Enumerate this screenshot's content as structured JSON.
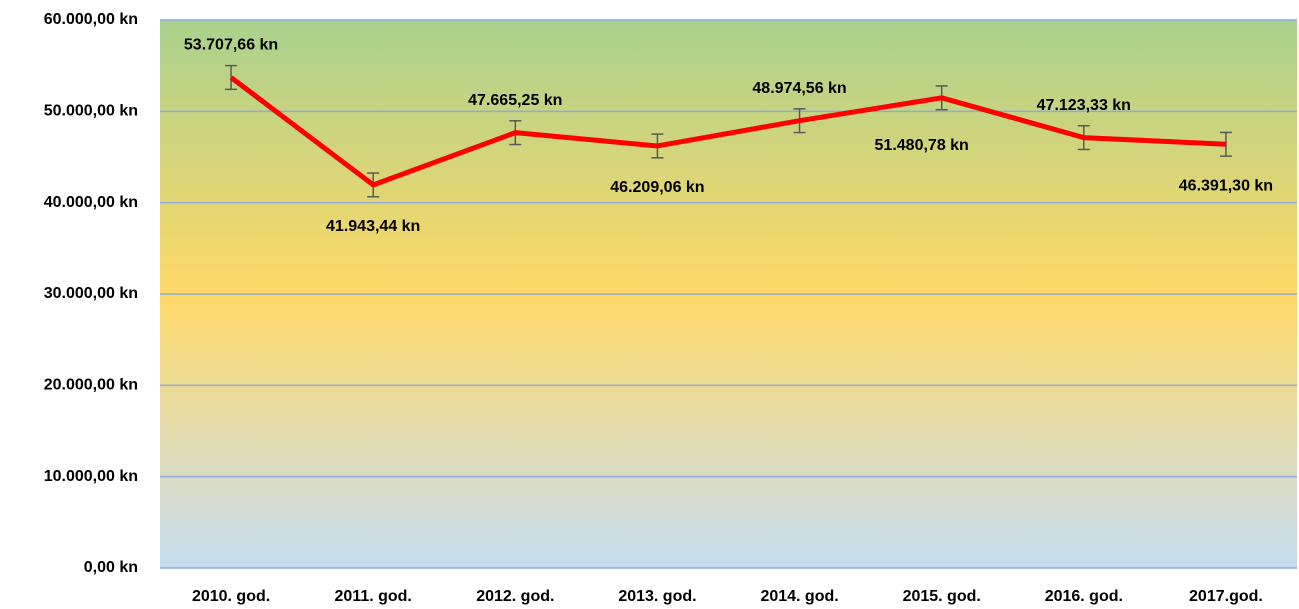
{
  "chart_data": {
    "type": "line",
    "categories": [
      "2010. god.",
      "2011. god.",
      "2012. god.",
      "2013. god.",
      "2014. god.",
      "2015. god.",
      "2016. god.",
      "2017.god."
    ],
    "series": [
      {
        "color": "#ff0000",
        "values": [
          53707.66,
          41943.44,
          47665.25,
          46209.06,
          48974.56,
          51480.78,
          47123.33,
          46391.3
        ],
        "value_labels": [
          "53.707,66 kn",
          "41.943,44 kn",
          "47.665,25 kn",
          "46.209,06 kn",
          "48.974,56 kn",
          "51.480,78 kn",
          "47.123,33 kn",
          "46.391,30 kn"
        ],
        "errors": [
          1300,
          1300,
          1300,
          1300,
          1300,
          1300,
          1300,
          1300
        ]
      }
    ],
    "ylim": [
      0,
      60000
    ],
    "yticks": [
      {
        "value": 0,
        "label": "0,00 kn"
      },
      {
        "value": 10000,
        "label": "10.000,00 kn"
      },
      {
        "value": 20000,
        "label": "20.000,00 kn"
      },
      {
        "value": 30000,
        "label": "30.000,00 kn"
      },
      {
        "value": 40000,
        "label": "40.000,00 kn"
      },
      {
        "value": 50000,
        "label": "50.000,00 kn"
      },
      {
        "value": 60000,
        "label": "60.000,00 kn"
      }
    ],
    "grid": true
  }
}
